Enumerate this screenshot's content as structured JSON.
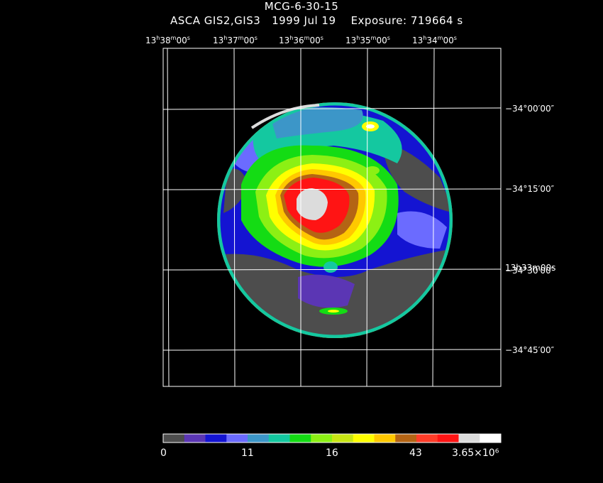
{
  "header": {
    "title": "MCG-6-30-15",
    "instrument": "ASCA GIS2,GIS3",
    "date": "1999 Jul 19",
    "exposure": "Exposure: 719664 s"
  },
  "ra_ticks": [
    {
      "h": "13",
      "m": "38",
      "s": "00"
    },
    {
      "h": "13",
      "m": "37",
      "s": "00"
    },
    {
      "h": "13",
      "m": "36",
      "s": "00"
    },
    {
      "h": "13",
      "m": "35",
      "s": "00"
    },
    {
      "h": "13",
      "m": "34",
      "s": "00"
    }
  ],
  "ra_overlap_label": "13h33m00s",
  "dec_ticks": [
    "−34°00′00″",
    "−34°15′00″",
    "−34°30′00″",
    "−34°45′00″"
  ],
  "colorbar": {
    "labels": [
      "0",
      "11",
      "16",
      "43",
      "3.65×10⁶"
    ],
    "colors": [
      "#4d4d4d",
      "#5b36b4",
      "#1414d2",
      "#6b6bff",
      "#3c96c8",
      "#14c8a0",
      "#14dc14",
      "#8cf014",
      "#c8e614",
      "#ffff00",
      "#ffc800",
      "#b46414",
      "#ff3c28",
      "#ff1414",
      "#dcdcdc",
      "#ffffff"
    ]
  }
}
